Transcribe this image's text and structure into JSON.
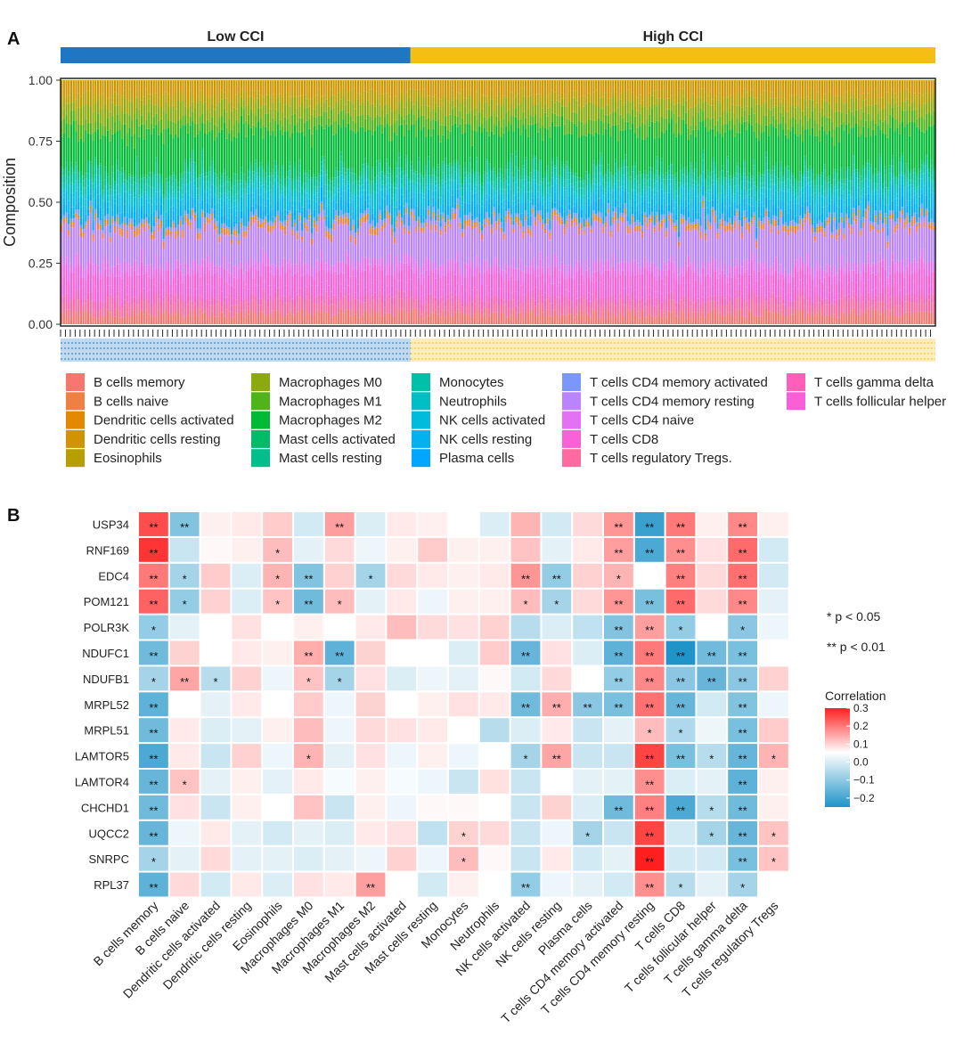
{
  "panel_a": {
    "label": "A",
    "groups": [
      {
        "name": "Low CCI",
        "color": "#1f77c3",
        "fraction": 0.4
      },
      {
        "name": "High CCI",
        "color": "#f5be14",
        "fraction": 0.6
      }
    ],
    "ylabel": "Composition",
    "yticks": [
      "0.00",
      "0.25",
      "0.50",
      "0.75",
      "1.00"
    ],
    "n_samples": 360,
    "legend": [
      {
        "name": "B cells memory",
        "color": "#f7766d"
      },
      {
        "name": "B cells naive",
        "color": "#ee8044"
      },
      {
        "name": "Dendritic cells activated",
        "color": "#e38900"
      },
      {
        "name": "Dendritic cells resting",
        "color": "#cf9400"
      },
      {
        "name": "Eosinophils",
        "color": "#b89f00"
      },
      {
        "name": "Macrophages M0",
        "color": "#8aab0b"
      },
      {
        "name": "Macrophages M1",
        "color": "#4fb31a"
      },
      {
        "name": "Macrophages M2",
        "color": "#00b935"
      },
      {
        "name": "Mast cells activated",
        "color": "#00bc68"
      },
      {
        "name": "Mast cells resting",
        "color": "#00bf8a"
      },
      {
        "name": "Monocytes",
        "color": "#00c0a9"
      },
      {
        "name": "Neutrophils",
        "color": "#00bfc4"
      },
      {
        "name": "NK cells activated",
        "color": "#00bcdc"
      },
      {
        "name": "NK cells resting",
        "color": "#00b3f0"
      },
      {
        "name": "Plasma cells",
        "color": "#00a6ff"
      },
      {
        "name": "T cells CD4 memory activated",
        "color": "#7b96ff"
      },
      {
        "name": "T cells CD4 memory resting",
        "color": "#bb84ff"
      },
      {
        "name": "T cells CD4 naive",
        "color": "#e470f4"
      },
      {
        "name": "T cells CD8",
        "color": "#fb61d7"
      },
      {
        "name": "T cells regulatory Tregs.",
        "color": "#ff6aa0"
      },
      {
        "name": "T cells gamma delta",
        "color": "#fe5fb8"
      },
      {
        "name": "T cells follicular helper",
        "color": "#fb5fd8"
      }
    ]
  },
  "panel_b": {
    "label": "B",
    "sig_note_1": "* p < 0.05",
    "sig_note_2": "** p < 0.01",
    "colorbar_title": "Correlation",
    "colorbar_ticks": [
      "0.3",
      "0.2",
      "0.1",
      "0.0",
      "−0.1",
      "−0.2"
    ]
  },
  "chart_data": [
    {
      "type": "bar",
      "subtype": "stacked-100",
      "title": "",
      "xlabel": "",
      "ylabel": "Composition",
      "ylim": [
        0,
        1
      ],
      "groups": [
        "Low CCI",
        "High CCI"
      ],
      "approx_mean_composition_low": {
        "B cells memory/naive/DC/pink fractions": "~0.35 pink-magenta (T cells/B cells) base",
        "Plasma/NK cyan band": "~0.05-0.15",
        "Macrophages green band": "~0.35",
        "Orange/olive top": "~0.15"
      },
      "series": [
        "B cells memory",
        "B cells naive",
        "Dendritic cells activated",
        "Dendritic cells resting",
        "Eosinophils",
        "Macrophages M0",
        "Macrophages M1",
        "Macrophages M2",
        "Mast cells activated",
        "Mast cells resting",
        "Monocytes",
        "Neutrophils",
        "NK cells activated",
        "NK cells resting",
        "Plasma cells",
        "T cells CD4 memory activated",
        "T cells CD4 memory resting",
        "T cells CD4 naive",
        "T cells CD8",
        "T cells regulatory Tregs.",
        "T cells gamma delta",
        "T cells follicular helper"
      ]
    },
    {
      "type": "heatmap",
      "title": "",
      "rows": [
        "USP34",
        "RNF169",
        "EDC4",
        "POM121",
        "POLR3K",
        "NDUFC1",
        "NDUFB1",
        "MRPL52",
        "MRPL51",
        "LAMTOR5",
        "LAMTOR4",
        "CHCHD1",
        "UQCC2",
        "SNRPC",
        "RPL37"
      ],
      "columns": [
        "B cells memory",
        "B cells naive",
        "Dendritic cells activated",
        "Dendritic cells resting",
        "Eosinophils",
        "Macrophages M0",
        "Macrophages M1",
        "Macrophages M2",
        "Mast cells activated",
        "Mast cells resting",
        "Monocytes",
        "Neutrophils",
        "NK cells activated",
        "NK cells resting",
        "Plasma cells",
        "T cells CD4 memory activated",
        "T cells CD4 memory resting",
        "T cells CD8",
        "T cells follicular helper",
        "T cells gamma delta",
        "T cells regulatory Tregs"
      ],
      "color_range": [
        -0.25,
        0.3
      ],
      "values": [
        [
          0.24,
          -0.14,
          0.02,
          0.03,
          0.07,
          -0.05,
          0.13,
          -0.04,
          0.03,
          0.02,
          0.0,
          -0.04,
          0.1,
          -0.05,
          0.05,
          0.14,
          -0.22,
          0.18,
          0.02,
          0.16,
          0.02
        ],
        [
          0.27,
          -0.06,
          0.01,
          0.02,
          0.09,
          -0.03,
          0.05,
          -0.02,
          0.02,
          0.07,
          0.02,
          0.02,
          0.08,
          -0.03,
          0.03,
          0.13,
          -0.2,
          0.15,
          0.04,
          0.2,
          -0.05
        ],
        [
          0.18,
          -0.1,
          0.07,
          -0.04,
          0.1,
          -0.14,
          0.06,
          -0.1,
          0.05,
          0.03,
          0.02,
          0.03,
          0.14,
          -0.12,
          0.06,
          0.1,
          0.0,
          0.17,
          0.05,
          0.19,
          -0.05
        ],
        [
          0.21,
          -0.12,
          0.06,
          -0.04,
          0.08,
          -0.16,
          0.09,
          -0.03,
          0.03,
          -0.02,
          0.02,
          0.02,
          0.09,
          -0.1,
          0.05,
          0.14,
          -0.15,
          0.2,
          0.05,
          0.16,
          -0.03
        ],
        [
          -0.12,
          -0.03,
          0.0,
          0.04,
          0.0,
          0.02,
          0.0,
          0.03,
          0.09,
          0.05,
          0.04,
          0.06,
          -0.08,
          -0.04,
          -0.07,
          -0.14,
          0.13,
          -0.12,
          0.0,
          -0.13,
          -0.02
        ],
        [
          -0.16,
          0.06,
          0.0,
          0.03,
          0.02,
          0.11,
          -0.18,
          0.06,
          0.0,
          0.0,
          -0.04,
          0.07,
          -0.17,
          0.04,
          -0.04,
          -0.18,
          0.18,
          -0.27,
          -0.16,
          -0.15,
          0.0
        ],
        [
          -0.1,
          0.12,
          -0.08,
          0.06,
          -0.02,
          0.08,
          -0.1,
          0.04,
          -0.04,
          -0.02,
          -0.03,
          0.01,
          -0.05,
          0.05,
          0.0,
          -0.12,
          0.16,
          -0.13,
          -0.17,
          -0.13,
          0.06
        ],
        [
          -0.18,
          0.0,
          -0.03,
          0.03,
          0.0,
          0.07,
          -0.02,
          0.06,
          0.0,
          0.02,
          0.04,
          0.03,
          -0.16,
          0.11,
          -0.13,
          -0.15,
          0.19,
          -0.17,
          -0.05,
          -0.14,
          -0.02
        ],
        [
          -0.16,
          0.03,
          -0.04,
          -0.03,
          0.02,
          0.09,
          -0.02,
          0.05,
          0.04,
          0.03,
          0.0,
          -0.08,
          -0.04,
          0.03,
          -0.06,
          -0.03,
          0.09,
          -0.09,
          -0.02,
          -0.15,
          0.07
        ],
        [
          -0.2,
          0.03,
          -0.06,
          0.06,
          -0.02,
          0.1,
          -0.03,
          0.04,
          -0.02,
          0.02,
          -0.02,
          0.0,
          -0.1,
          0.12,
          -0.06,
          -0.06,
          0.25,
          -0.15,
          -0.08,
          -0.17,
          0.1
        ],
        [
          -0.17,
          0.08,
          -0.03,
          0.02,
          -0.03,
          0.03,
          -0.01,
          0.02,
          -0.01,
          -0.02,
          -0.06,
          0.04,
          -0.06,
          0.0,
          -0.03,
          -0.03,
          0.15,
          -0.04,
          -0.03,
          -0.18,
          0.02
        ],
        [
          -0.16,
          0.04,
          -0.06,
          0.02,
          0.0,
          0.08,
          -0.06,
          0.02,
          -0.02,
          0.01,
          0.01,
          0.0,
          -0.06,
          0.06,
          -0.04,
          -0.16,
          0.17,
          -0.2,
          -0.08,
          -0.16,
          0.02
        ],
        [
          -0.17,
          -0.02,
          0.03,
          -0.03,
          -0.05,
          -0.03,
          -0.04,
          0.03,
          0.04,
          -0.07,
          0.06,
          0.05,
          -0.06,
          -0.02,
          -0.1,
          -0.06,
          0.25,
          -0.05,
          -0.1,
          -0.17,
          0.08
        ],
        [
          -0.1,
          -0.03,
          0.05,
          -0.03,
          -0.03,
          -0.04,
          -0.03,
          -0.02,
          0.06,
          -0.02,
          0.09,
          0.01,
          -0.06,
          0.03,
          -0.05,
          -0.03,
          0.33,
          -0.05,
          -0.05,
          -0.15,
          0.08
        ],
        [
          -0.18,
          0.05,
          -0.05,
          0.03,
          -0.04,
          0.04,
          0.03,
          0.13,
          0.0,
          -0.05,
          0.02,
          0.0,
          -0.12,
          -0.02,
          -0.03,
          -0.05,
          0.15,
          -0.08,
          -0.03,
          -0.1,
          0.0
        ]
      ],
      "significance": [
        [
          "**",
          "**",
          "",
          "",
          "",
          "",
          "**",
          "",
          "",
          "",
          "",
          "",
          "",
          "",
          "",
          "**",
          "**",
          "**",
          "",
          "**",
          ""
        ],
        [
          "**",
          "",
          "",
          "",
          "*",
          "",
          "",
          "",
          "",
          "",
          "",
          "",
          "",
          "",
          "",
          "**",
          "**",
          "**",
          "",
          "**",
          ""
        ],
        [
          "**",
          "*",
          "",
          "",
          "*",
          "**",
          "",
          "*",
          "",
          "",
          "",
          "",
          "**",
          "**",
          "",
          "*",
          "",
          "**",
          "",
          "**",
          ""
        ],
        [
          "**",
          "*",
          "",
          "",
          "*",
          "**",
          "*",
          "",
          "",
          "",
          "",
          "",
          "*",
          "*",
          "",
          "**",
          "**",
          "**",
          "",
          "**",
          ""
        ],
        [
          "*",
          "",
          "",
          "",
          "",
          "",
          "",
          "",
          "",
          "",
          "",
          "",
          "",
          "",
          "",
          "**",
          "**",
          "*",
          "",
          "*",
          ""
        ],
        [
          "**",
          "",
          "",
          "",
          "",
          "**",
          "**",
          "",
          "",
          "",
          "",
          "",
          "**",
          "",
          "",
          "**",
          "**",
          "**",
          "**",
          "**",
          ""
        ],
        [
          "*",
          "**",
          "*",
          "",
          "",
          "*",
          "*",
          "",
          "",
          "",
          "",
          "",
          "",
          "",
          "",
          "**",
          "**",
          "**",
          "**",
          "**",
          ""
        ],
        [
          "**",
          "",
          "",
          "",
          "",
          "",
          "",
          "",
          "",
          "",
          "",
          "",
          "**",
          "**",
          "**",
          "**",
          "**",
          "**",
          "",
          "**",
          ""
        ],
        [
          "**",
          "",
          "",
          "",
          "",
          "",
          "",
          "",
          "",
          "",
          "",
          "",
          "",
          "",
          "",
          "",
          "*",
          "*",
          "",
          "**",
          ""
        ],
        [
          "**",
          "",
          "",
          "",
          "",
          "*",
          "",
          "",
          "",
          "",
          "",
          "",
          "*",
          "**",
          "",
          "",
          "**",
          "**",
          "*",
          "**",
          "*"
        ],
        [
          "**",
          "*",
          "",
          "",
          "",
          "",
          "",
          "",
          "",
          "",
          "",
          "",
          "",
          "",
          "",
          "",
          "**",
          "",
          "",
          "**",
          ""
        ],
        [
          "**",
          "",
          "",
          "",
          "",
          "",
          "",
          "",
          "",
          "",
          "",
          "",
          "",
          "",
          "",
          "**",
          "**",
          "**",
          "*",
          "**",
          ""
        ],
        [
          "**",
          "",
          "",
          "",
          "",
          "",
          "",
          "",
          "",
          "",
          "*",
          "",
          "",
          "",
          "*",
          "",
          "**",
          "",
          "*",
          "**",
          "*"
        ],
        [
          "*",
          "",
          "",
          "",
          "",
          "",
          "",
          "",
          "",
          "",
          "*",
          "",
          "",
          "",
          "",
          "",
          "**",
          "",
          "",
          "**",
          "*"
        ],
        [
          "**",
          "",
          "",
          "",
          "",
          "",
          "",
          "**",
          "",
          "",
          "",
          "",
          "**",
          "",
          "",
          "",
          "**",
          "*",
          "",
          "*",
          ""
        ]
      ]
    }
  ]
}
